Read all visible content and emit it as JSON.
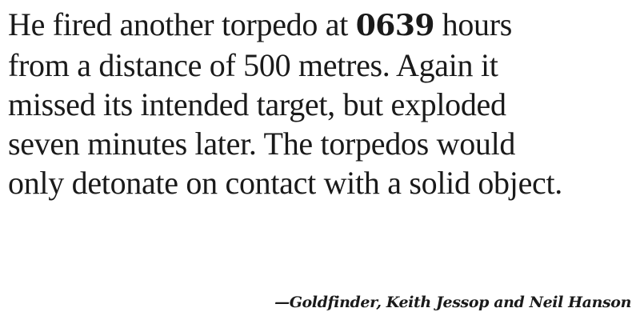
{
  "quote": {
    "line1_before": "He fired another torpedo at ",
    "time": "0639",
    "line1_after": " hours",
    "line2": "from a distance of 500 metres. Again it",
    "line3": "missed its intended target, but exploded",
    "line4": "seven minutes later. The torpedos would",
    "line5": "only detonate on contact with a solid object."
  },
  "attribution": {
    "text": "—Goldfinder, Keith Jessop and Neil Hanson"
  }
}
